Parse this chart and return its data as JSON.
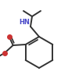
{
  "bg_color": "#ffffff",
  "line_color": "#333333",
  "hn_color": "#4848c8",
  "o_color": "#cc3333",
  "figsize": [
    0.78,
    1.05
  ],
  "dpi": 100,
  "bond_lw": 1.4
}
